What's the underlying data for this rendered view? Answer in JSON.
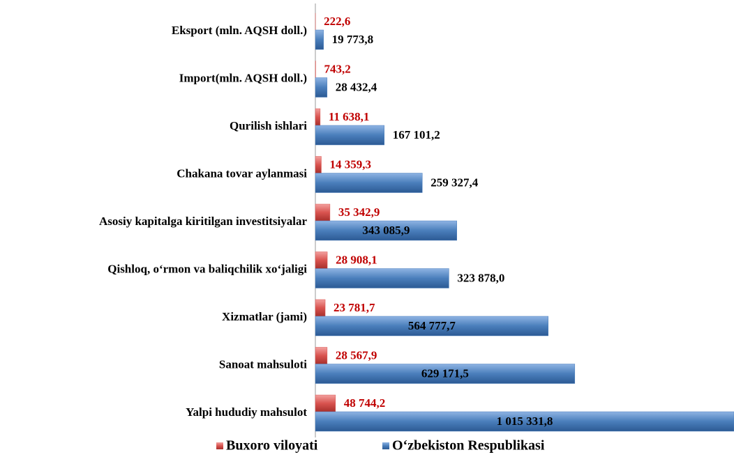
{
  "chart_data": {
    "type": "bar",
    "orientation": "horizontal",
    "categories": [
      "Eksport (mln. AQSH doll.)",
      "Import(mln. AQSH doll.)",
      "Qurilish ishlari",
      "Chakana tovar aylanmasi",
      "Asosiy kapitalga kiritilgan investitsiyalar",
      "Qishloq, o‘rmon va baliqchilik xo‘jaligi",
      "Xizmatlar (jami)",
      "Sanoat mahsuloti",
      "Yalpi hududiy mahsulot"
    ],
    "series": [
      {
        "name": "Buxoro viloyati",
        "color": "#d9534f",
        "values": [
          222.6,
          743.2,
          11638.1,
          14359.3,
          35342.9,
          28908.1,
          23781.7,
          28567.9,
          48744.2
        ],
        "value_labels": [
          "222,6",
          "743,2",
          "11 638,1",
          "14 359,3",
          "35 342,9",
          "28 908,1",
          "23 781,7",
          "28 567,9",
          "48 744,2"
        ]
      },
      {
        "name": "O‘zbekiston Respublikasi",
        "color": "#4a7ebb",
        "values": [
          19773.8,
          28432.4,
          167101.2,
          259327.4,
          343085.9,
          323878.0,
          564777.7,
          629171.5,
          1015331.8
        ],
        "value_labels": [
          "19 773,8",
          "28 432,4",
          "167 101,2",
          "259 327,4",
          "343 085,9",
          "323 878,0",
          "564 777,7",
          "629 171,5",
          "1 015 331,8"
        ]
      }
    ],
    "legend": "bottom"
  }
}
